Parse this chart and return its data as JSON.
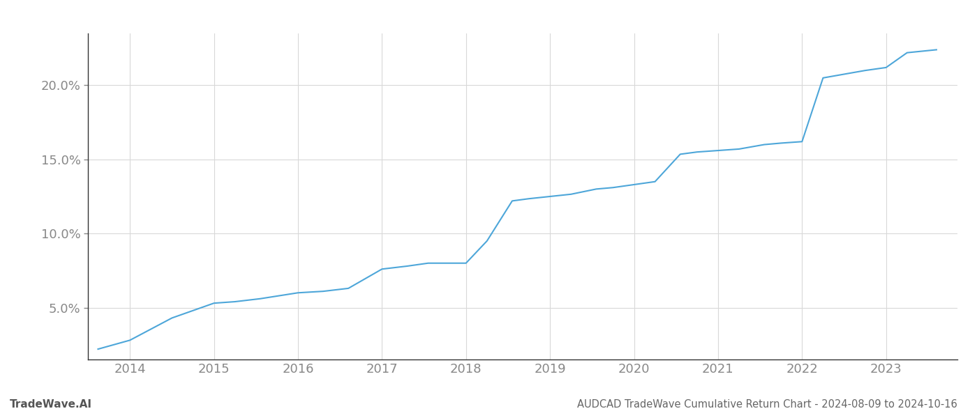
{
  "x_values": [
    2013.62,
    2014.0,
    2014.5,
    2015.0,
    2015.25,
    2015.55,
    2016.0,
    2016.3,
    2016.6,
    2017.0,
    2017.3,
    2017.55,
    2017.75,
    2018.0,
    2018.25,
    2018.55,
    2018.75,
    2019.0,
    2019.25,
    2019.55,
    2019.75,
    2020.0,
    2020.25,
    2020.55,
    2020.75,
    2021.0,
    2021.25,
    2021.55,
    2021.75,
    2022.0,
    2022.25,
    2022.55,
    2022.75,
    2023.0,
    2023.25,
    2023.6
  ],
  "y_values": [
    2.2,
    2.8,
    4.3,
    5.3,
    5.4,
    5.6,
    6.0,
    6.1,
    6.3,
    7.6,
    7.8,
    8.0,
    8.0,
    8.0,
    9.5,
    12.2,
    12.35,
    12.5,
    12.65,
    13.0,
    13.1,
    13.3,
    13.5,
    15.35,
    15.5,
    15.6,
    15.7,
    16.0,
    16.1,
    16.2,
    20.5,
    20.8,
    21.0,
    21.2,
    22.2,
    22.4
  ],
  "line_color": "#4da6d9",
  "line_width": 1.5,
  "title": "AUDCAD TradeWave Cumulative Return Chart - 2024-08-09 to 2024-10-16",
  "title_fontsize": 10.5,
  "title_color": "#666666",
  "watermark": "TradeWave.AI",
  "watermark_color": "#555555",
  "watermark_fontsize": 11,
  "xtick_labels": [
    "2014",
    "2015",
    "2016",
    "2017",
    "2018",
    "2019",
    "2020",
    "2021",
    "2022",
    "2023"
  ],
  "xtick_values": [
    2014,
    2015,
    2016,
    2017,
    2018,
    2019,
    2020,
    2021,
    2022,
    2023
  ],
  "ytick_values": [
    5.0,
    10.0,
    15.0,
    20.0
  ],
  "ytick_labels": [
    "5.0%",
    "10.0%",
    "15.0%",
    "20.0%"
  ],
  "xlim": [
    2013.5,
    2023.85
  ],
  "ylim": [
    1.5,
    23.5
  ],
  "grid_color": "#d8d8d8",
  "background_color": "#ffffff",
  "tick_color": "#888888",
  "spine_color": "#333333",
  "tick_fontsize": 13
}
